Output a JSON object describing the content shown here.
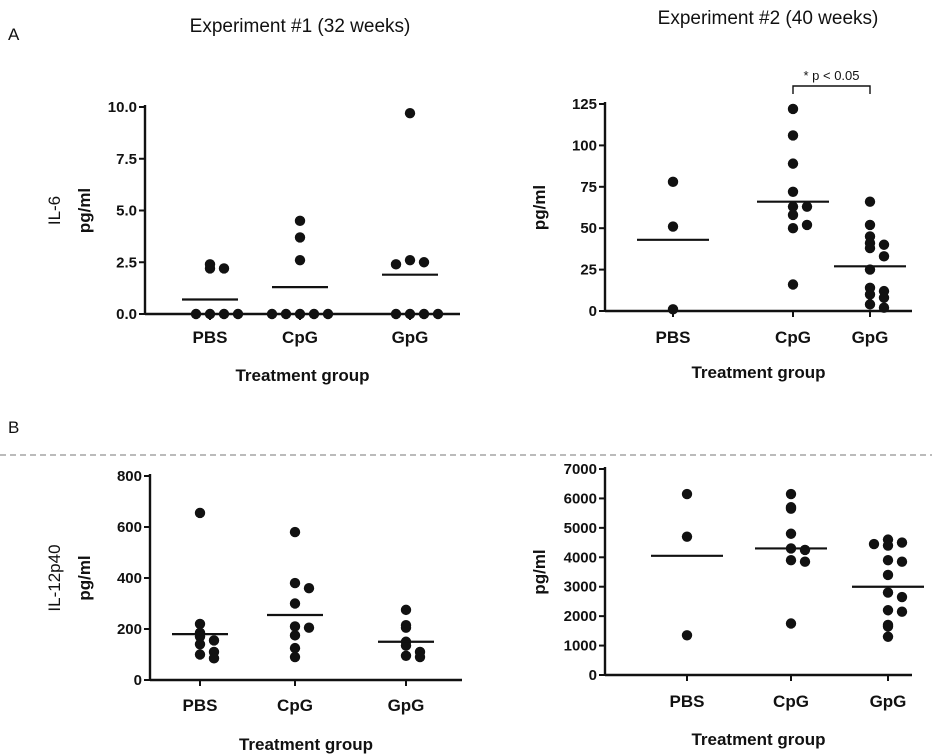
{
  "figure": {
    "panel_a": "A",
    "panel_b": "B",
    "exp1_title": "Experiment #1 (32 weeks)",
    "exp2_title": "Experiment #2 (40 weeks)"
  },
  "chart_data": [
    {
      "type": "scatter",
      "panel": "A",
      "title": "",
      "ylabel_quantity": "IL-6",
      "ylabel": "pg/ml",
      "xlabel": "Treatment group",
      "categories": [
        "PBS",
        "CpG",
        "GpG"
      ],
      "ylim": [
        0,
        10
      ],
      "yticks": [
        "0.0",
        "2.5",
        "5.0",
        "7.5",
        "10.0"
      ],
      "series": [
        {
          "category": "PBS",
          "values": [
            2.2,
            2.2,
            2.4,
            0,
            0,
            0,
            0
          ],
          "mean": 0.7
        },
        {
          "category": "CpG",
          "values": [
            4.5,
            3.7,
            2.6,
            0,
            0,
            0,
            0,
            0
          ],
          "mean": 1.3
        },
        {
          "category": "GpG",
          "values": [
            9.7,
            2.6,
            2.5,
            2.4,
            0,
            0,
            0,
            0
          ],
          "mean": 1.9
        }
      ]
    },
    {
      "type": "scatter",
      "panel": "A",
      "title": "",
      "ylabel": "pg/ml",
      "xlabel": "Treatment group",
      "categories": [
        "PBS",
        "CpG",
        "GpG"
      ],
      "ylim": [
        0,
        125
      ],
      "yticks": [
        "0",
        "25",
        "50",
        "75",
        "100",
        "125"
      ],
      "series": [
        {
          "category": "PBS",
          "values": [
            78,
            51,
            1
          ],
          "mean": 43
        },
        {
          "category": "CpG",
          "values": [
            122,
            106,
            89,
            72,
            63,
            63,
            58,
            50,
            52,
            16
          ],
          "mean": 66
        },
        {
          "category": "GpG",
          "values": [
            66,
            52,
            45,
            41,
            40,
            38,
            33,
            25,
            14,
            12,
            10,
            8,
            4,
            2
          ],
          "mean": 27
        }
      ],
      "annotation": "* p < 0.05"
    },
    {
      "type": "scatter",
      "panel": "B",
      "title": "",
      "ylabel_quantity": "IL-12p40",
      "ylabel": "pg/ml",
      "xlabel": "Treatment group",
      "categories": [
        "PBS",
        "CpG",
        "GpG"
      ],
      "ylim": [
        0,
        800
      ],
      "yticks": [
        "0",
        "200",
        "400",
        "600",
        "800"
      ],
      "series": [
        {
          "category": "PBS",
          "values": [
            655,
            220,
            185,
            170,
            155,
            140,
            110,
            100,
            85
          ],
          "mean": 180
        },
        {
          "category": "CpG",
          "values": [
            580,
            380,
            360,
            300,
            210,
            205,
            175,
            125,
            90
          ],
          "mean": 255
        },
        {
          "category": "GpG",
          "values": [
            275,
            215,
            205,
            150,
            135,
            110,
            95,
            90
          ],
          "mean": 150
        }
      ]
    },
    {
      "type": "scatter",
      "panel": "B",
      "title": "",
      "ylabel": "pg/ml",
      "xlabel": "Treatment group",
      "categories": [
        "PBS",
        "CpG",
        "GpG"
      ],
      "ylim": [
        0,
        7000
      ],
      "yticks": [
        "0",
        "1000",
        "2000",
        "3000",
        "4000",
        "5000",
        "6000",
        "7000"
      ],
      "series": [
        {
          "category": "PBS",
          "values": [
            6150,
            4700,
            1350
          ],
          "mean": 4050
        },
        {
          "category": "CpG",
          "values": [
            6150,
            5700,
            5650,
            4800,
            4300,
            4250,
            3900,
            3850,
            1750
          ],
          "mean": 4300
        },
        {
          "category": "GpG",
          "values": [
            4600,
            4500,
            4450,
            4400,
            3900,
            3850,
            3400,
            2800,
            2650,
            2200,
            2150,
            1700,
            1650,
            1300
          ],
          "mean": 3000
        }
      ]
    }
  ]
}
